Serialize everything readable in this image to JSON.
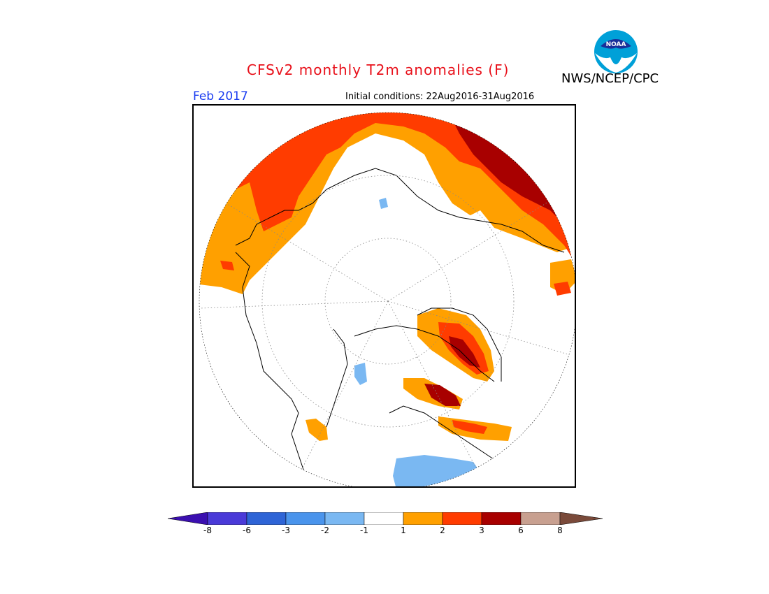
{
  "header": {
    "title": "CFSv2 monthly T2m anomalies (F)",
    "valid_month": "Feb 2017",
    "initial_conditions": "Initial conditions: 22Aug2016-31Aug2016",
    "organization": "NWS/NCEP/CPC",
    "logo_text": "NOAA"
  },
  "colorbar": {
    "tick_labels": [
      "-8",
      "-6",
      "-3",
      "-2",
      "-1",
      "1",
      "2",
      "3",
      "6",
      "8"
    ],
    "colors": [
      "#3b0fb0",
      "#4a3ad8",
      "#2e64d6",
      "#4a94ec",
      "#7ab8f2",
      "#ffffff",
      "#ffa000",
      "#ff3c00",
      "#a80000",
      "#c8a090",
      "#7a4a3a"
    ]
  },
  "legend_bins": [
    {
      "range": "< -8",
      "color": "#3b0fb0"
    },
    {
      "range": "-8 to -6",
      "color": "#4a3ad8"
    },
    {
      "range": "-6 to -3",
      "color": "#2e64d6"
    },
    {
      "range": "-3 to -2",
      "color": "#4a94ec"
    },
    {
      "range": "-2 to -1",
      "color": "#7ab8f2"
    },
    {
      "range": "-1 to 1",
      "color": "#ffffff"
    },
    {
      "range": "1 to 2",
      "color": "#ffa000"
    },
    {
      "range": "2 to 3",
      "color": "#ff3c00"
    },
    {
      "range": "3 to 6",
      "color": "#a80000"
    },
    {
      "range": "6 to 8",
      "color": "#c8a090"
    },
    {
      "range": "> 8",
      "color": "#7a4a3a"
    }
  ]
}
